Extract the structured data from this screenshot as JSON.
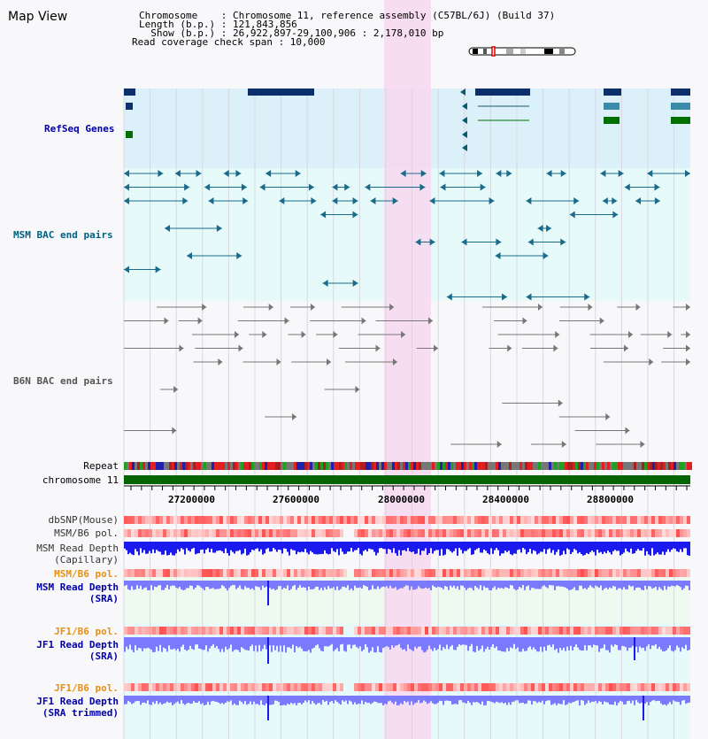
{
  "title": "Map View",
  "header": {
    "line1": "Chromosome    : Chromosome 11, reference assembly (C57BL/6J) (Build 37)",
    "line2": "Length (b.p.) : 121,843,856",
    "line3": "  Show (b.p.) : 26,922,897-29,100,906 : 2,178,010 bp",
    "line4": "Read coverage check span : 10,000"
  },
  "tracks": {
    "refseq": "RefSeq Genes",
    "msm_bac": "MSM BAC end pairs",
    "b6n_bac": "B6N BAC end pairs",
    "repeat": "Repeat",
    "chromosome": "chromosome 11",
    "dbsnp": "dbSNP(Mouse)",
    "msmb6_pol": "MSM/B6 pol.",
    "msm_depth_cap_1": "MSM Read Depth",
    "msm_depth_cap_2": "(Capillary)",
    "msmb6_pol_sra": "MSM/B6 pol.",
    "msm_depth_sra_1": "MSM Read Depth",
    "msm_depth_sra_2": "(SRA)",
    "jf1b6_pol": "JF1/B6 pol.",
    "jf1_depth_1": "JF1 Read Depth",
    "jf1_depth_2": "(SRA)",
    "jf1b6_pol_trim": "JF1/B6 pol.",
    "jf1_trim_1": "JF1 Read Depth",
    "jf1_trim_2": "(SRA trimmed)"
  },
  "axis": {
    "ticks": [
      "27200000",
      "27600000",
      "28000000",
      "28400000",
      "28800000"
    ]
  },
  "colors": {
    "refseq_bg": "#dcf0fa",
    "msm_bg": "#e6fafa",
    "highlight": "#f7d8f0",
    "gene_dark": "#0a2f6a",
    "gene_teal": "#0a6a8a",
    "gene_green": "#007000",
    "msm_pair": "#1a6a8a",
    "b6n_pair": "#777777",
    "chrom_bar": "#006400",
    "depth_blue": "#1a1aee",
    "depth_light": "#7a7aff",
    "pol_orange": "#e89010",
    "label_blue": "#0000aa"
  }
}
